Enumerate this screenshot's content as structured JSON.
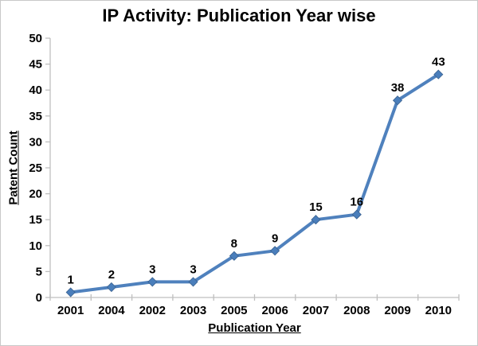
{
  "window": {
    "background": "#ffffff",
    "border_color": "#c9c9c9"
  },
  "chart_data": {
    "type": "line",
    "title": "IP Activity: Publication Year wise",
    "xlabel": "Publication Year",
    "ylabel": "Patent Count",
    "categories": [
      "2001",
      "2004",
      "2002",
      "2003",
      "2005",
      "2006",
      "2007",
      "2008",
      "2009",
      "2010"
    ],
    "values": [
      1,
      2,
      3,
      3,
      8,
      9,
      15,
      16,
      38,
      43
    ],
    "ylim": [
      0,
      50
    ],
    "ytick_step": 5,
    "yticks": [
      0,
      5,
      10,
      15,
      20,
      25,
      30,
      35,
      40,
      45,
      50
    ],
    "grid": false,
    "legend": "none",
    "marker": "diamond",
    "data_labels_visible": true,
    "colors": {
      "line": "#4F81BD",
      "marker_fill": "#4A7EBB",
      "marker_stroke": "#39618F",
      "axis": "#BFBFBF",
      "text": "#000000"
    }
  }
}
